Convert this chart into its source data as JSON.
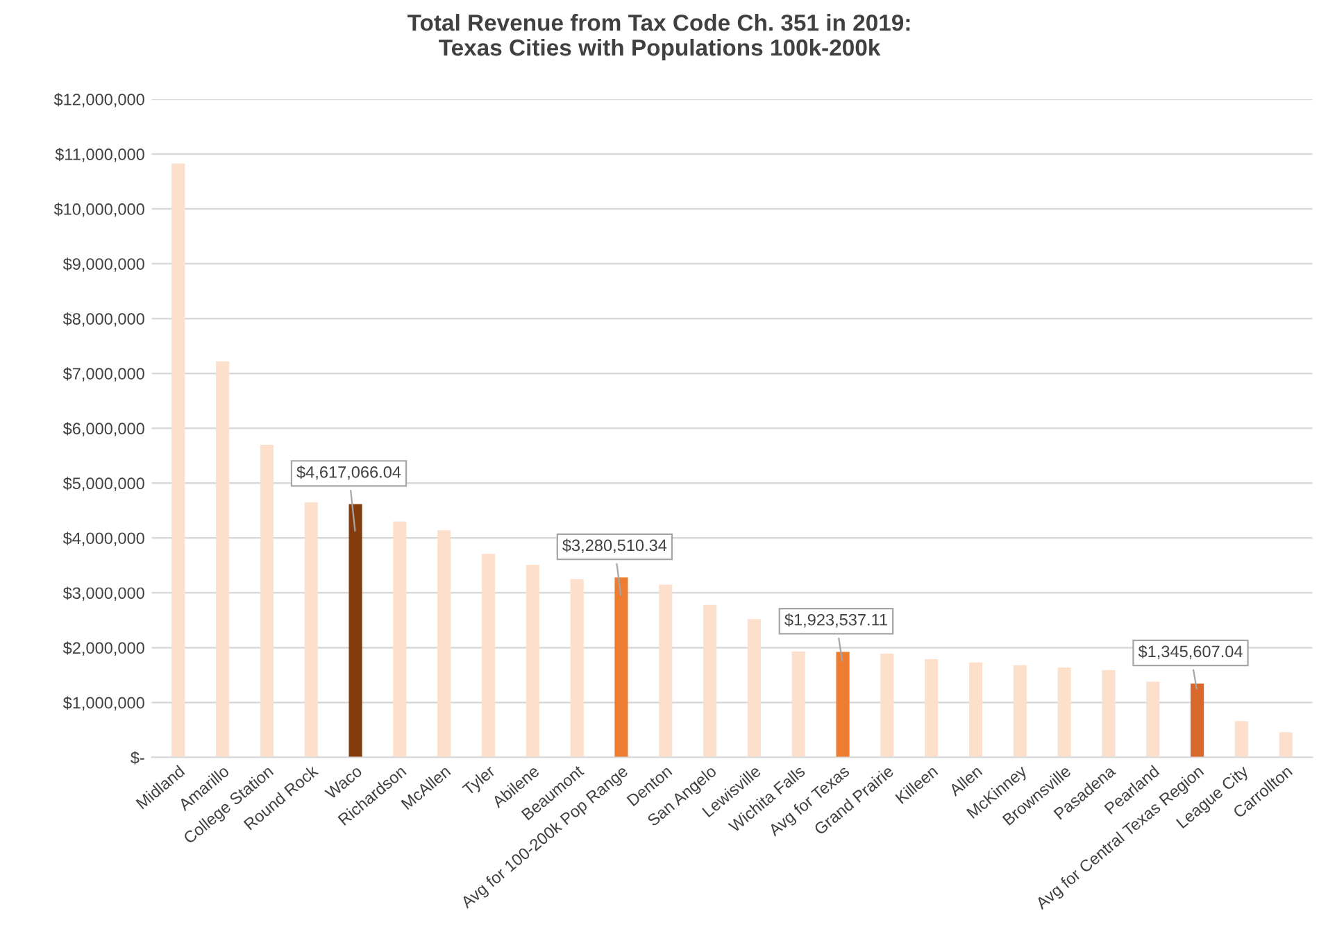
{
  "chart_data": {
    "type": "bar",
    "title": "Total Revenue from Tax Code Ch. 351 in 2019:\nTexas Cities with Populations 100k-200k",
    "categories": [
      "Midland",
      "Amarillo",
      "College Station",
      "Round Rock",
      "Waco",
      "Richardson",
      "McAllen",
      "Tyler",
      "Abilene",
      "Beaumont",
      "Avg for 100-200k Pop Range",
      "Denton",
      "San Angelo",
      "Lewisville",
      "Wichita Falls",
      "Avg for Texas",
      "Grand Prairie",
      "Killeen",
      "Allen",
      "McKinney",
      "Brownsville",
      "Pasadena",
      "Pearland",
      "Avg for Central Texas Region",
      "League City",
      "Carrollton"
    ],
    "values": [
      10830000,
      7220000,
      5700000,
      4650000,
      4617066.04,
      4300000,
      4140000,
      3710000,
      3510000,
      3250000,
      3280510.34,
      3150000,
      2780000,
      2520000,
      1930000,
      1923537.11,
      1890000,
      1790000,
      1730000,
      1680000,
      1640000,
      1590000,
      1380000,
      1345607.04,
      660000,
      460000
    ],
    "colors": [
      "#fce0cc",
      "#fce0cc",
      "#fce0cc",
      "#fce0cc",
      "#843c0c",
      "#fce0cc",
      "#fce0cc",
      "#fce0cc",
      "#fce0cc",
      "#fce0cc",
      "#ed7d31",
      "#fce0cc",
      "#fce0cc",
      "#fce0cc",
      "#fce0cc",
      "#ed7d31",
      "#fce0cc",
      "#fce0cc",
      "#fce0cc",
      "#fce0cc",
      "#fce0cc",
      "#fce0cc",
      "#fce0cc",
      "#d8692a",
      "#fce0cc",
      "#fce0cc"
    ],
    "value_labels": [
      null,
      null,
      null,
      null,
      "$4,617,066.04",
      null,
      null,
      null,
      null,
      null,
      "$3,280,510.34",
      null,
      null,
      null,
      null,
      "$1,923,537.11",
      null,
      null,
      null,
      null,
      null,
      null,
      null,
      "$1,345,607.04",
      null,
      null
    ],
    "ylim": [
      0,
      12000000
    ],
    "yticks": [
      {
        "value": 0,
        "label": "$-"
      },
      {
        "value": 1000000,
        "label": "$1,000,000"
      },
      {
        "value": 2000000,
        "label": "$2,000,000"
      },
      {
        "value": 3000000,
        "label": "$3,000,000"
      },
      {
        "value": 4000000,
        "label": "$4,000,000"
      },
      {
        "value": 5000000,
        "label": "$5,000,000"
      },
      {
        "value": 6000000,
        "label": "$6,000,000"
      },
      {
        "value": 7000000,
        "label": "$7,000,000"
      },
      {
        "value": 8000000,
        "label": "$8,000,000"
      },
      {
        "value": 9000000,
        "label": "$9,000,000"
      },
      {
        "value": 10000000,
        "label": "$10,000,000"
      },
      {
        "value": 11000000,
        "label": "$11,000,000"
      },
      {
        "value": 12000000,
        "label": "$12,000,000"
      }
    ],
    "grid": "y"
  }
}
